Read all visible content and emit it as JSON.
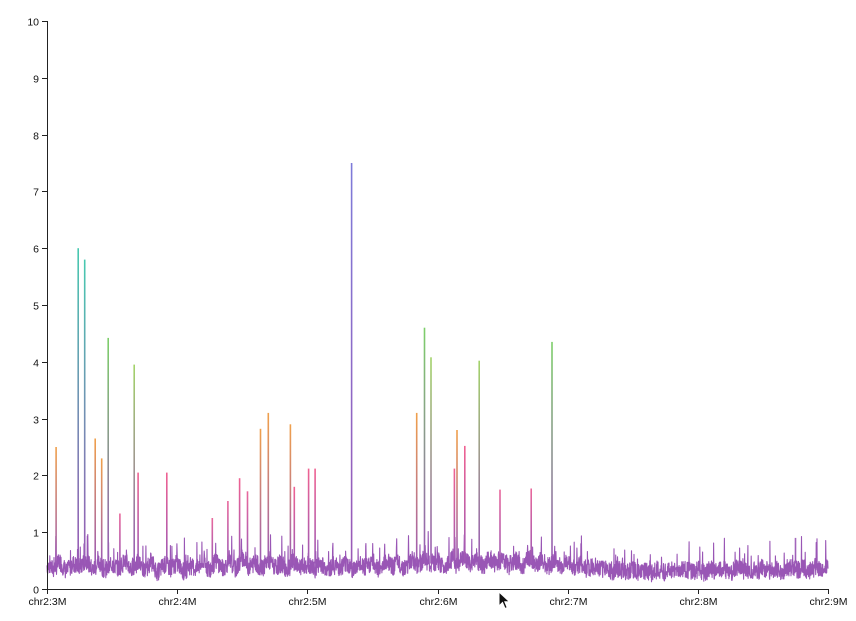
{
  "chart_data": {
    "type": "line",
    "title": "",
    "xlabel": "",
    "ylabel": "",
    "xlim": [
      3000000,
      9000000
    ],
    "ylim": [
      0,
      10
    ],
    "x_ticks": [
      {
        "value": 3000000,
        "label": "chr2:3M"
      },
      {
        "value": 4000000,
        "label": "chr2:4M"
      },
      {
        "value": 5000000,
        "label": "chr2:5M"
      },
      {
        "value": 6000000,
        "label": "chr2:6M"
      },
      {
        "value": 7000000,
        "label": "chr2:7M"
      },
      {
        "value": 8000000,
        "label": "chr2:8M"
      },
      {
        "value": 9000000,
        "label": "chr2:9M"
      }
    ],
    "y_ticks": [
      {
        "value": 0,
        "label": "0"
      },
      {
        "value": 1,
        "label": "1"
      },
      {
        "value": 2,
        "label": "2"
      },
      {
        "value": 3,
        "label": "3"
      },
      {
        "value": 4,
        "label": "4"
      },
      {
        "value": 5,
        "label": "5"
      },
      {
        "value": 6,
        "label": "6"
      },
      {
        "value": 7,
        "label": "7"
      },
      {
        "value": 8,
        "label": "8"
      },
      {
        "value": 9,
        "label": "9"
      },
      {
        "value": 10,
        "label": "10"
      }
    ],
    "baseline": {
      "color": "#8e44ad",
      "points": [
        [
          3000000,
          0.42
        ],
        [
          3050000,
          0.35
        ],
        [
          3100000,
          0.48
        ],
        [
          3150000,
          0.3
        ],
        [
          3200000,
          0.45
        ],
        [
          3250000,
          0.38
        ],
        [
          3300000,
          0.52
        ],
        [
          3350000,
          0.33
        ],
        [
          3400000,
          0.46
        ],
        [
          3450000,
          0.31
        ],
        [
          3500000,
          0.44
        ],
        [
          3550000,
          0.36
        ],
        [
          3600000,
          0.5
        ],
        [
          3650000,
          0.34
        ],
        [
          3700000,
          0.47
        ],
        [
          3750000,
          0.32
        ],
        [
          3800000,
          0.49
        ],
        [
          3850000,
          0.29
        ],
        [
          3900000,
          0.43
        ],
        [
          3950000,
          0.37
        ],
        [
          4000000,
          0.45
        ],
        [
          4050000,
          0.3
        ],
        [
          4100000,
          0.41
        ],
        [
          4150000,
          0.35
        ],
        [
          4200000,
          0.46
        ],
        [
          4250000,
          0.33
        ],
        [
          4300000,
          0.5
        ],
        [
          4350000,
          0.36
        ],
        [
          4400000,
          0.48
        ],
        [
          4450000,
          0.34
        ],
        [
          4500000,
          0.55
        ],
        [
          4550000,
          0.38
        ],
        [
          4600000,
          0.47
        ],
        [
          4650000,
          0.35
        ],
        [
          4700000,
          0.52
        ],
        [
          4750000,
          0.37
        ],
        [
          4800000,
          0.45
        ],
        [
          4850000,
          0.33
        ],
        [
          4900000,
          0.48
        ],
        [
          4950000,
          0.36
        ],
        [
          5000000,
          0.44
        ],
        [
          5050000,
          0.32
        ],
        [
          5100000,
          0.46
        ],
        [
          5150000,
          0.35
        ],
        [
          5200000,
          0.42
        ],
        [
          5250000,
          0.38
        ],
        [
          5300000,
          0.47
        ],
        [
          5350000,
          0.34
        ],
        [
          5400000,
          0.43
        ],
        [
          5450000,
          0.37
        ],
        [
          5500000,
          0.49
        ],
        [
          5550000,
          0.35
        ],
        [
          5600000,
          0.51
        ],
        [
          5650000,
          0.38
        ],
        [
          5700000,
          0.46
        ],
        [
          5750000,
          0.36
        ],
        [
          5800000,
          0.52
        ],
        [
          5850000,
          0.39
        ],
        [
          5900000,
          0.55
        ],
        [
          5950000,
          0.4
        ],
        [
          6000000,
          0.5
        ],
        [
          6050000,
          0.38
        ],
        [
          6100000,
          0.53
        ],
        [
          6150000,
          0.41
        ],
        [
          6200000,
          0.55
        ],
        [
          6250000,
          0.4
        ],
        [
          6300000,
          0.52
        ],
        [
          6350000,
          0.39
        ],
        [
          6400000,
          0.56
        ],
        [
          6450000,
          0.42
        ],
        [
          6500000,
          0.54
        ],
        [
          6550000,
          0.41
        ],
        [
          6600000,
          0.5
        ],
        [
          6650000,
          0.39
        ],
        [
          6700000,
          0.55
        ],
        [
          6750000,
          0.43
        ],
        [
          6800000,
          0.52
        ],
        [
          6850000,
          0.4
        ],
        [
          6900000,
          0.48
        ],
        [
          6950000,
          0.38
        ],
        [
          7000000,
          0.46
        ],
        [
          7050000,
          0.36
        ],
        [
          7100000,
          0.44
        ],
        [
          7150000,
          0.34
        ],
        [
          7200000,
          0.41
        ],
        [
          7250000,
          0.33
        ],
        [
          7300000,
          0.38
        ],
        [
          7350000,
          0.3
        ],
        [
          7400000,
          0.36
        ],
        [
          7450000,
          0.29
        ],
        [
          7500000,
          0.35
        ],
        [
          7550000,
          0.28
        ],
        [
          7600000,
          0.33
        ],
        [
          7650000,
          0.27
        ],
        [
          7700000,
          0.34
        ],
        [
          7750000,
          0.28
        ],
        [
          7800000,
          0.35
        ],
        [
          7850000,
          0.3
        ],
        [
          7900000,
          0.36
        ],
        [
          7950000,
          0.29
        ],
        [
          8000000,
          0.34
        ],
        [
          8050000,
          0.28
        ],
        [
          8100000,
          0.36
        ],
        [
          8150000,
          0.3
        ],
        [
          8200000,
          0.35
        ],
        [
          8250000,
          0.29
        ],
        [
          8300000,
          0.37
        ],
        [
          8350000,
          0.31
        ],
        [
          8400000,
          0.36
        ],
        [
          8450000,
          0.3
        ],
        [
          8500000,
          0.38
        ],
        [
          8550000,
          0.32
        ],
        [
          8600000,
          0.36
        ],
        [
          8650000,
          0.31
        ],
        [
          8700000,
          0.39
        ],
        [
          8750000,
          0.33
        ],
        [
          8800000,
          0.37
        ],
        [
          8850000,
          0.32
        ],
        [
          8900000,
          0.38
        ],
        [
          8950000,
          0.33
        ],
        [
          9000000,
          0.36
        ]
      ]
    },
    "spikes": [
      {
        "x": 3070000,
        "y": 2.5,
        "color": "#f0a04b"
      },
      {
        "x": 3240000,
        "y": 6.0,
        "color": "#48c9b0"
      },
      {
        "x": 3290000,
        "y": 5.8,
        "color": "#48c9b0"
      },
      {
        "x": 3370000,
        "y": 2.65,
        "color": "#f0a04b"
      },
      {
        "x": 3420000,
        "y": 2.3,
        "color": "#f0a04b"
      },
      {
        "x": 3470000,
        "y": 4.42,
        "color": "#7dcf6a"
      },
      {
        "x": 3560000,
        "y": 1.33,
        "color": "#e9689c"
      },
      {
        "x": 3670000,
        "y": 3.95,
        "color": "#a3d36a"
      },
      {
        "x": 3700000,
        "y": 2.05,
        "color": "#f06292"
      },
      {
        "x": 3920000,
        "y": 2.05,
        "color": "#f06292"
      },
      {
        "x": 4270000,
        "y": 1.25,
        "color": "#e9689c"
      },
      {
        "x": 4390000,
        "y": 1.55,
        "color": "#e9689c"
      },
      {
        "x": 4480000,
        "y": 1.95,
        "color": "#f06292"
      },
      {
        "x": 4540000,
        "y": 1.72,
        "color": "#e9689c"
      },
      {
        "x": 4640000,
        "y": 2.82,
        "color": "#f0a04b"
      },
      {
        "x": 4700000,
        "y": 3.1,
        "color": "#f0a04b"
      },
      {
        "x": 4870000,
        "y": 2.9,
        "color": "#f0a04b"
      },
      {
        "x": 4900000,
        "y": 1.8,
        "color": "#f06292"
      },
      {
        "x": 5010000,
        "y": 2.12,
        "color": "#f06292"
      },
      {
        "x": 5060000,
        "y": 2.12,
        "color": "#f06292"
      },
      {
        "x": 5340000,
        "y": 7.5,
        "color": "#7e7bd9"
      },
      {
        "x": 5840000,
        "y": 3.1,
        "color": "#f0a04b"
      },
      {
        "x": 5900000,
        "y": 4.6,
        "color": "#7dcf6a"
      },
      {
        "x": 5950000,
        "y": 4.08,
        "color": "#a3d36a"
      },
      {
        "x": 6130000,
        "y": 2.12,
        "color": "#f06292"
      },
      {
        "x": 6150000,
        "y": 2.8,
        "color": "#f0a04b"
      },
      {
        "x": 6210000,
        "y": 2.52,
        "color": "#f06292"
      },
      {
        "x": 6320000,
        "y": 4.02,
        "color": "#a3d36a"
      },
      {
        "x": 6480000,
        "y": 1.75,
        "color": "#e9689c"
      },
      {
        "x": 6720000,
        "y": 1.77,
        "color": "#e9689c"
      },
      {
        "x": 6880000,
        "y": 4.35,
        "color": "#7dcf6a"
      },
      {
        "x": 8750000,
        "y": 0.9,
        "color": "#a569bd"
      }
    ]
  }
}
